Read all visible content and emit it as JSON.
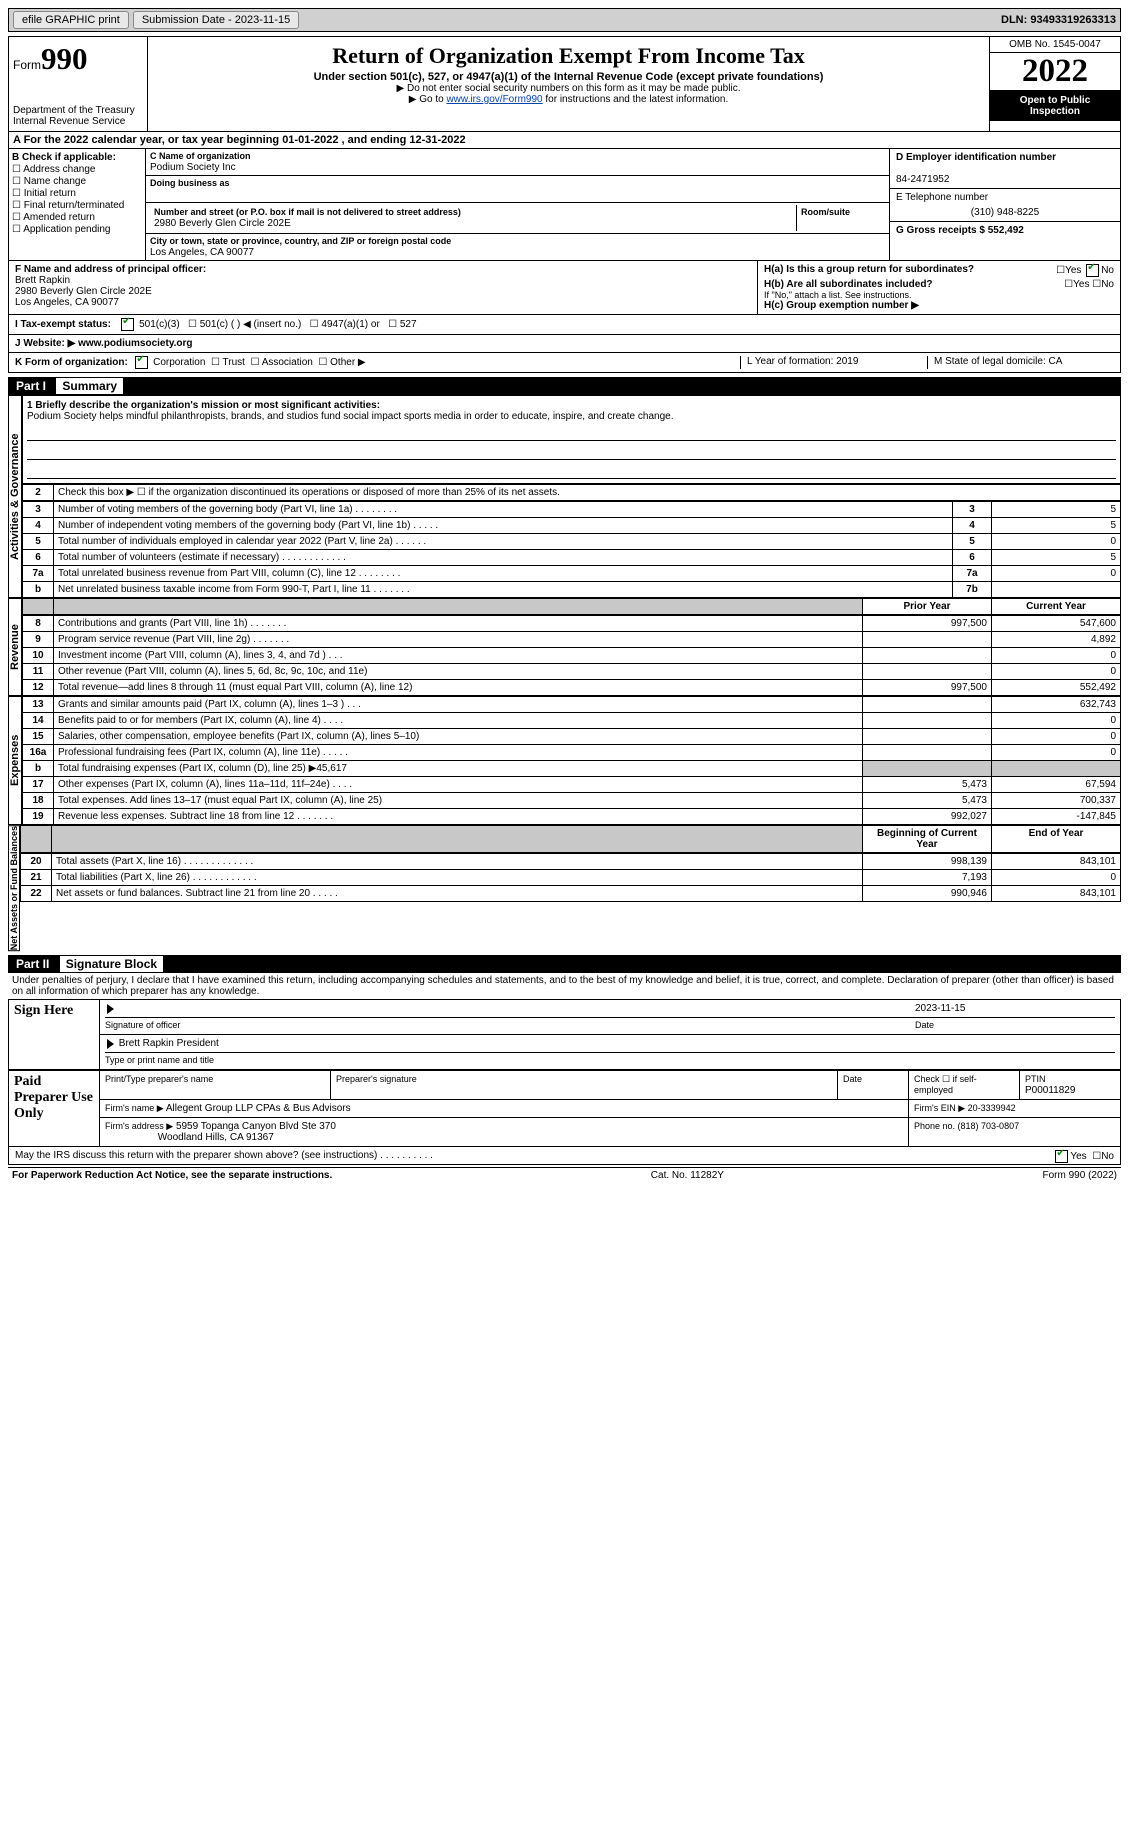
{
  "topbar": {
    "efile_label": "efile GRAPHIC print",
    "submission_label": "Submission Date - 2023-11-15",
    "dln_label": "DLN: 93493319263313"
  },
  "header": {
    "form_word": "Form",
    "form_num": "990",
    "dept": "Department of the Treasury\nInternal Revenue Service",
    "title": "Return of Organization Exempt From Income Tax",
    "subtitle": "Under section 501(c), 527, or 4947(a)(1) of the Internal Revenue Code (except private foundations)",
    "note1": "▶ Do not enter social security numbers on this form as it may be made public.",
    "note2_a": "▶ Go to ",
    "note2_link": "www.irs.gov/Form990",
    "note2_b": " for instructions and the latest information.",
    "omb": "OMB No. 1545-0047",
    "year": "2022",
    "inspection": "Open to Public Inspection"
  },
  "row_a": "A For the 2022 calendar year, or tax year beginning 01-01-2022      , and ending 12-31-2022",
  "col_b": {
    "title": "B Check if applicable:",
    "opts": [
      "Address change",
      "Name change",
      "Initial return",
      "Final return/terminated",
      "Amended return",
      "Application pending"
    ]
  },
  "col_c": {
    "name_label": "C Name of organization",
    "name": "Podium Society Inc",
    "dba_label": "Doing business as",
    "street_label": "Number and street (or P.O. box if mail is not delivered to street address)",
    "room_label": "Room/suite",
    "street": "2980 Beverly Glen Circle 202E",
    "city_label": "City or town, state or province, country, and ZIP or foreign postal code",
    "city": "Los Angeles, CA   90077"
  },
  "col_d": {
    "ein_label": "D Employer identification number",
    "ein": "84-2471952",
    "phone_label": "E Telephone number",
    "phone": "(310) 948-8225",
    "gross_label": "G Gross receipts $ 552,492"
  },
  "fhi": {
    "f_label": "F  Name and address of principal officer:",
    "f_name": "Brett Rapkin",
    "f_addr1": "2980 Beverly Glen Circle 202E",
    "f_addr2": "Los Angeles, CA   90077",
    "ha": "H(a)  Is this a group return for subordinates?",
    "hb": "H(b)  Are all subordinates included?",
    "hb_note": "If \"No,\" attach a list. See instructions.",
    "hc": "H(c)  Group exemption number ▶",
    "yes": "Yes",
    "no": "No"
  },
  "lines": {
    "i": "I    Tax-exempt status:",
    "i_opts": [
      "501(c)(3)",
      "501(c) (  ) ◀ (insert no.)",
      "4947(a)(1) or",
      "527"
    ],
    "j": "J   Website: ▶   www.podiumsociety.org",
    "k": "K Form of organization:",
    "k_opts": [
      "Corporation",
      "Trust",
      "Association",
      "Other ▶"
    ],
    "l_label": "L Year of formation: 2019",
    "m_label": "M State of legal domicile: CA"
  },
  "part1": {
    "title": "Part I",
    "name": "Summary",
    "q1_label": "1   Briefly describe the organization's mission or most significant activities:",
    "q1_text": "Podium Society helps mindful philanthropists, brands, and studios fund social impact sports media in order to educate, inspire, and create change.",
    "q2": "Check this box ▶ ☐ if the organization discontinued its operations or disposed of more than 25% of its net assets.",
    "rows_ag": [
      {
        "n": "3",
        "d": "Number of voting members of the governing body (Part VI, line 1a)   .     .     .     .     .     .     .     .",
        "box": "3",
        "v": "5"
      },
      {
        "n": "4",
        "d": "Number of independent voting members of the governing body (Part VI, line 1b)   .     .     .     .     .",
        "box": "4",
        "v": "5"
      },
      {
        "n": "5",
        "d": "Total number of individuals employed in calendar year 2022 (Part V, line 2a)   .     .     .     .     .     .",
        "box": "5",
        "v": "0"
      },
      {
        "n": "6",
        "d": "Total number of volunteers (estimate if necessary)     .     .     .     .     .     .     .     .     .     .     .     .",
        "box": "6",
        "v": "5"
      },
      {
        "n": "7a",
        "d": "Total unrelated business revenue from Part VIII, column (C), line 12   .     .     .     .     .     .     .     .",
        "box": "7a",
        "v": "0"
      },
      {
        "n": "b",
        "d": "Net unrelated business taxable income from Form 990-T, Part I, line 11   .     .     .     .     .     .     .",
        "box": "7b",
        "v": ""
      }
    ],
    "col_headers": {
      "prior": "Prior Year",
      "current": "Current Year"
    },
    "rows_rev": [
      {
        "n": "8",
        "d": "Contributions and grants (Part VIII, line 1h)    .     .     .     .     .     .     .",
        "p": "997,500",
        "c": "547,600"
      },
      {
        "n": "9",
        "d": "Program service revenue (Part VIII, line 2g)    .     .     .     .     .     .     .",
        "p": "",
        "c": "4,892"
      },
      {
        "n": "10",
        "d": "Investment income (Part VIII, column (A), lines 3, 4, and 7d )    .     .     .",
        "p": "",
        "c": "0"
      },
      {
        "n": "11",
        "d": "Other revenue (Part VIII, column (A), lines 5, 6d, 8c, 9c, 10c, and 11e)",
        "p": "",
        "c": "0"
      },
      {
        "n": "12",
        "d": "Total revenue—add lines 8 through 11 (must equal Part VIII, column (A), line 12)",
        "p": "997,500",
        "c": "552,492"
      }
    ],
    "rows_exp": [
      {
        "n": "13",
        "d": "Grants and similar amounts paid (Part IX, column (A), lines 1–3 )   .     .     .",
        "p": "",
        "c": "632,743"
      },
      {
        "n": "14",
        "d": "Benefits paid to or for members (Part IX, column (A), line 4)   .     .     .     .",
        "p": "",
        "c": "0"
      },
      {
        "n": "15",
        "d": "Salaries, other compensation, employee benefits (Part IX, column (A), lines 5–10)",
        "p": "",
        "c": "0"
      },
      {
        "n": "16a",
        "d": "Professional fundraising fees (Part IX, column (A), line 11e)   .     .     .     .     .",
        "p": "",
        "c": "0"
      },
      {
        "n": "b",
        "d": "Total fundraising expenses (Part IX, column (D), line 25) ▶45,617",
        "p": "grey",
        "c": "grey"
      },
      {
        "n": "17",
        "d": "Other expenses (Part IX, column (A), lines 11a–11d, 11f–24e)   .     .     .     .",
        "p": "5,473",
        "c": "67,594"
      },
      {
        "n": "18",
        "d": "Total expenses. Add lines 13–17 (must equal Part IX, column (A), line 25)",
        "p": "5,473",
        "c": "700,337"
      },
      {
        "n": "19",
        "d": "Revenue less expenses. Subtract line 18 from line 12   .     .     .     .     .     .     .",
        "p": "992,027",
        "c": "-147,845"
      }
    ],
    "col_headers2": {
      "prior": "Beginning of Current Year",
      "current": "End of Year"
    },
    "rows_net": [
      {
        "n": "20",
        "d": "Total assets (Part X, line 16)   .     .     .     .     .     .     .     .     .     .     .     .     .",
        "p": "998,139",
        "c": "843,101"
      },
      {
        "n": "21",
        "d": "Total liabilities (Part X, line 26)   .     .     .     .     .     .     .     .     .     .     .     .",
        "p": "7,193",
        "c": "0"
      },
      {
        "n": "22",
        "d": "Net assets or fund balances. Subtract line 21 from line 20   .     .     .     .     .",
        "p": "990,946",
        "c": "843,101"
      }
    ],
    "vlabels": {
      "ag": "Activities & Governance",
      "rev": "Revenue",
      "exp": "Expenses",
      "net": "Net Assets or Fund Balances"
    }
  },
  "part2": {
    "title": "Part II",
    "name": "Signature Block",
    "decl": "Under penalties of perjury, I declare that I have examined this return, including accompanying schedules and statements, and to the best of my knowledge and belief, it is true, correct, and complete. Declaration of preparer (other than officer) is based on all information of which preparer has any knowledge.",
    "sign_here": "Sign Here",
    "sig_officer": "Signature of officer",
    "sig_date": "2023-11-15",
    "date_label": "Date",
    "officer_name": "Brett Rapkin  President",
    "type_name": "Type or print name and title",
    "paid": "Paid Preparer Use Only",
    "prep_name_label": "Print/Type preparer's name",
    "prep_sig_label": "Preparer's signature",
    "prep_date_label": "Date",
    "check_self": "Check ☐ if self-employed",
    "ptin_label": "PTIN",
    "ptin": "P00011829",
    "firm_name_label": "Firm's name     ▶",
    "firm_name": "Allegent Group LLP CPAs & Bus Advisors",
    "firm_ein_label": "Firm's EIN ▶ 20-3339942",
    "firm_addr_label": "Firm's address ▶",
    "firm_addr1": "5959 Topanga Canyon Blvd Ste 370",
    "firm_addr2": "Woodland Hills, CA   91367",
    "firm_phone": "Phone no. (818) 703-0807",
    "discuss": "May the IRS discuss this return with the preparer shown above? (see instructions)    .     .     .     .     .     .     .     .     .     .",
    "yes": "Yes",
    "no": "No"
  },
  "footer": {
    "left": "For Paperwork Reduction Act Notice, see the separate instructions.",
    "center": "Cat. No. 11282Y",
    "right": "Form 990 (2022)"
  }
}
